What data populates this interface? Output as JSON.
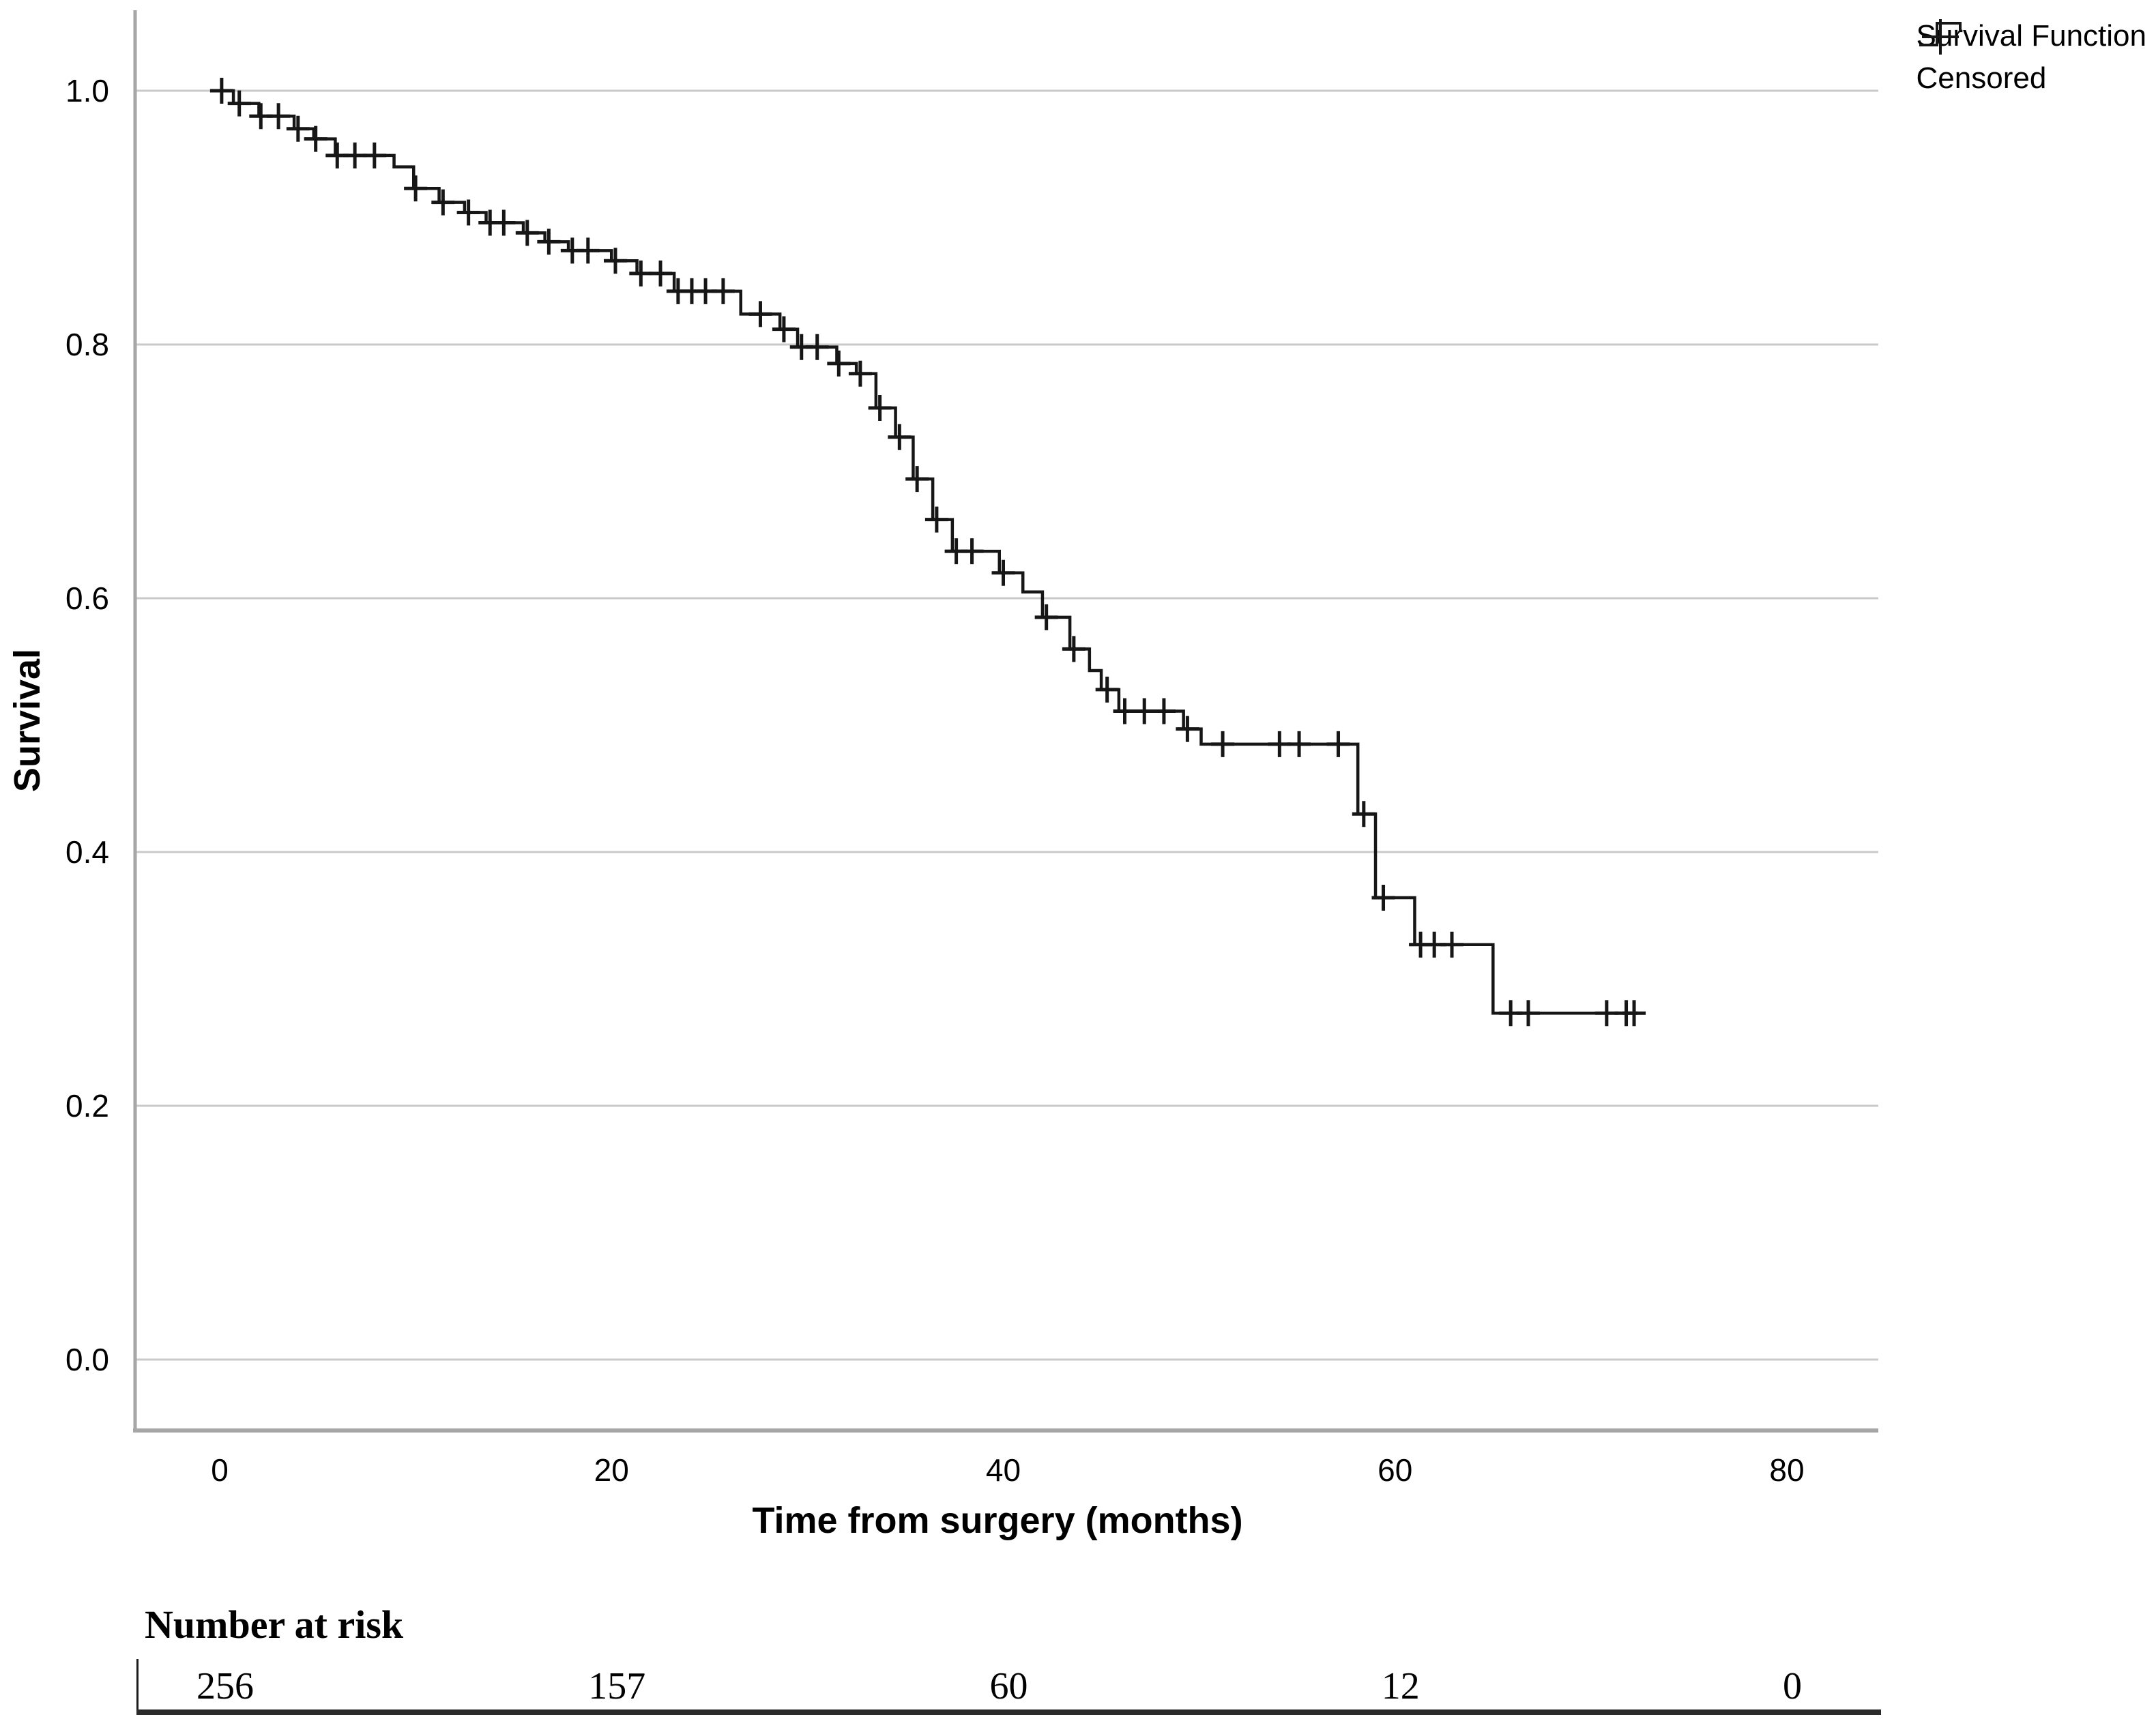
{
  "figure": {
    "colors": {
      "curve": "#161616",
      "gridline": "#c9c9c9",
      "axis_line": "#a6a6a6",
      "text": "#000000",
      "risk_line": "#2a2a2a"
    },
    "legend": {
      "items": [
        {
          "symbol": "step-icon",
          "label": "Survival Function"
        },
        {
          "symbol": "plus-icon",
          "label": "Censored"
        }
      ]
    }
  },
  "chart_data": {
    "type": "line",
    "subtype": "kaplan-meier-step",
    "title": "",
    "xlabel": "Time from surgery (months)",
    "ylabel": "Survival",
    "grid": "horizontal",
    "legend_position": "top-right",
    "xlim": [
      -4.3,
      84.7
    ],
    "ylim": [
      -0.056,
      1.063
    ],
    "x_ticks": [
      {
        "value": 0,
        "label": "0"
      },
      {
        "value": 20,
        "label": "20"
      },
      {
        "value": 40,
        "label": "40"
      },
      {
        "value": 60,
        "label": "60"
      },
      {
        "value": 80,
        "label": "80"
      }
    ],
    "y_ticks": [
      {
        "value": 1.0,
        "label": "1.0"
      },
      {
        "value": 0.8,
        "label": "0.8"
      },
      {
        "value": 0.6,
        "label": "0.6"
      },
      {
        "value": 0.4,
        "label": "0.4"
      },
      {
        "value": 0.2,
        "label": "0.2"
      },
      {
        "value": 0.0,
        "label": "0.0"
      }
    ],
    "series": [
      {
        "name": "Survival Function",
        "end_time": 72.3,
        "steps": [
          [
            0.0,
            1.0
          ],
          [
            0.7,
            0.99
          ],
          [
            2.0,
            0.98
          ],
          [
            3.8,
            0.97
          ],
          [
            4.8,
            0.962
          ],
          [
            5.9,
            0.949
          ],
          [
            8.9,
            0.94
          ],
          [
            9.9,
            0.923
          ],
          [
            11.2,
            0.912
          ],
          [
            12.5,
            0.904
          ],
          [
            13.6,
            0.896
          ],
          [
            15.5,
            0.888
          ],
          [
            16.6,
            0.881
          ],
          [
            17.8,
            0.874
          ],
          [
            20.0,
            0.866
          ],
          [
            21.3,
            0.856
          ],
          [
            23.2,
            0.842
          ],
          [
            26.6,
            0.824
          ],
          [
            28.6,
            0.812
          ],
          [
            29.5,
            0.798
          ],
          [
            31.5,
            0.785
          ],
          [
            32.5,
            0.777
          ],
          [
            33.5,
            0.75
          ],
          [
            34.5,
            0.727
          ],
          [
            35.4,
            0.694
          ],
          [
            36.4,
            0.662
          ],
          [
            37.4,
            0.637
          ],
          [
            39.8,
            0.62
          ],
          [
            41.0,
            0.605
          ],
          [
            42.0,
            0.585
          ],
          [
            43.4,
            0.56
          ],
          [
            44.4,
            0.543
          ],
          [
            45.0,
            0.528
          ],
          [
            45.9,
            0.511
          ],
          [
            49.2,
            0.497
          ],
          [
            50.1,
            0.485
          ],
          [
            58.1,
            0.43
          ],
          [
            59.0,
            0.364
          ],
          [
            61.0,
            0.327
          ],
          [
            65.0,
            0.273
          ]
        ]
      }
    ],
    "censor_times": [
      0.1,
      1.0,
      2.1,
      3.0,
      4.0,
      4.9,
      6.0,
      6.9,
      7.9,
      10.0,
      11.4,
      12.7,
      13.8,
      14.5,
      15.7,
      16.8,
      18.0,
      18.8,
      20.2,
      21.5,
      22.5,
      23.4,
      24.1,
      24.8,
      25.7,
      27.6,
      28.8,
      29.7,
      30.5,
      31.6,
      32.7,
      33.7,
      34.7,
      35.6,
      36.6,
      37.6,
      38.4,
      40.0,
      42.2,
      43.6,
      45.3,
      46.2,
      47.2,
      48.2,
      49.4,
      51.2,
      54.1,
      55.1,
      57.1,
      58.4,
      59.4,
      61.3,
      62.0,
      62.9,
      65.9,
      66.8,
      70.8,
      71.8,
      72.2
    ],
    "number_at_risk": {
      "title": "Number at risk",
      "times": [
        0,
        20,
        40,
        60,
        80
      ],
      "values": [
        "256",
        "157",
        "60",
        "12",
        "0"
      ]
    }
  }
}
